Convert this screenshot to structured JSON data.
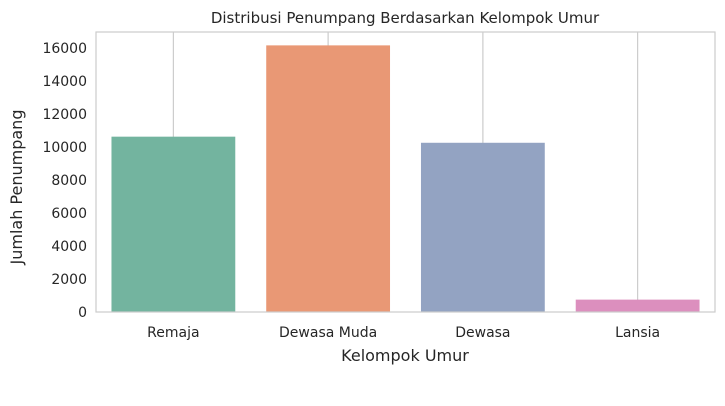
{
  "chart_data": {
    "type": "bar",
    "title": "Distribusi Penumpang Berdasarkan Kelompok Umur",
    "xlabel": "Kelompok Umur",
    "ylabel": "Jumlah Penumpang",
    "categories": [
      "Remaja",
      "Dewasa Muda",
      "Dewasa",
      "Lansia"
    ],
    "values": [
      10620,
      16150,
      10250,
      750
    ],
    "colors": [
      "#73b49f",
      "#e99875",
      "#93a3c2",
      "#dc8fbe"
    ],
    "ylim": [
      0,
      16960
    ],
    "yticks": [
      0,
      2000,
      4000,
      6000,
      8000,
      10000,
      12000,
      14000,
      16000
    ],
    "grid": "x-only",
    "legend": "none"
  }
}
